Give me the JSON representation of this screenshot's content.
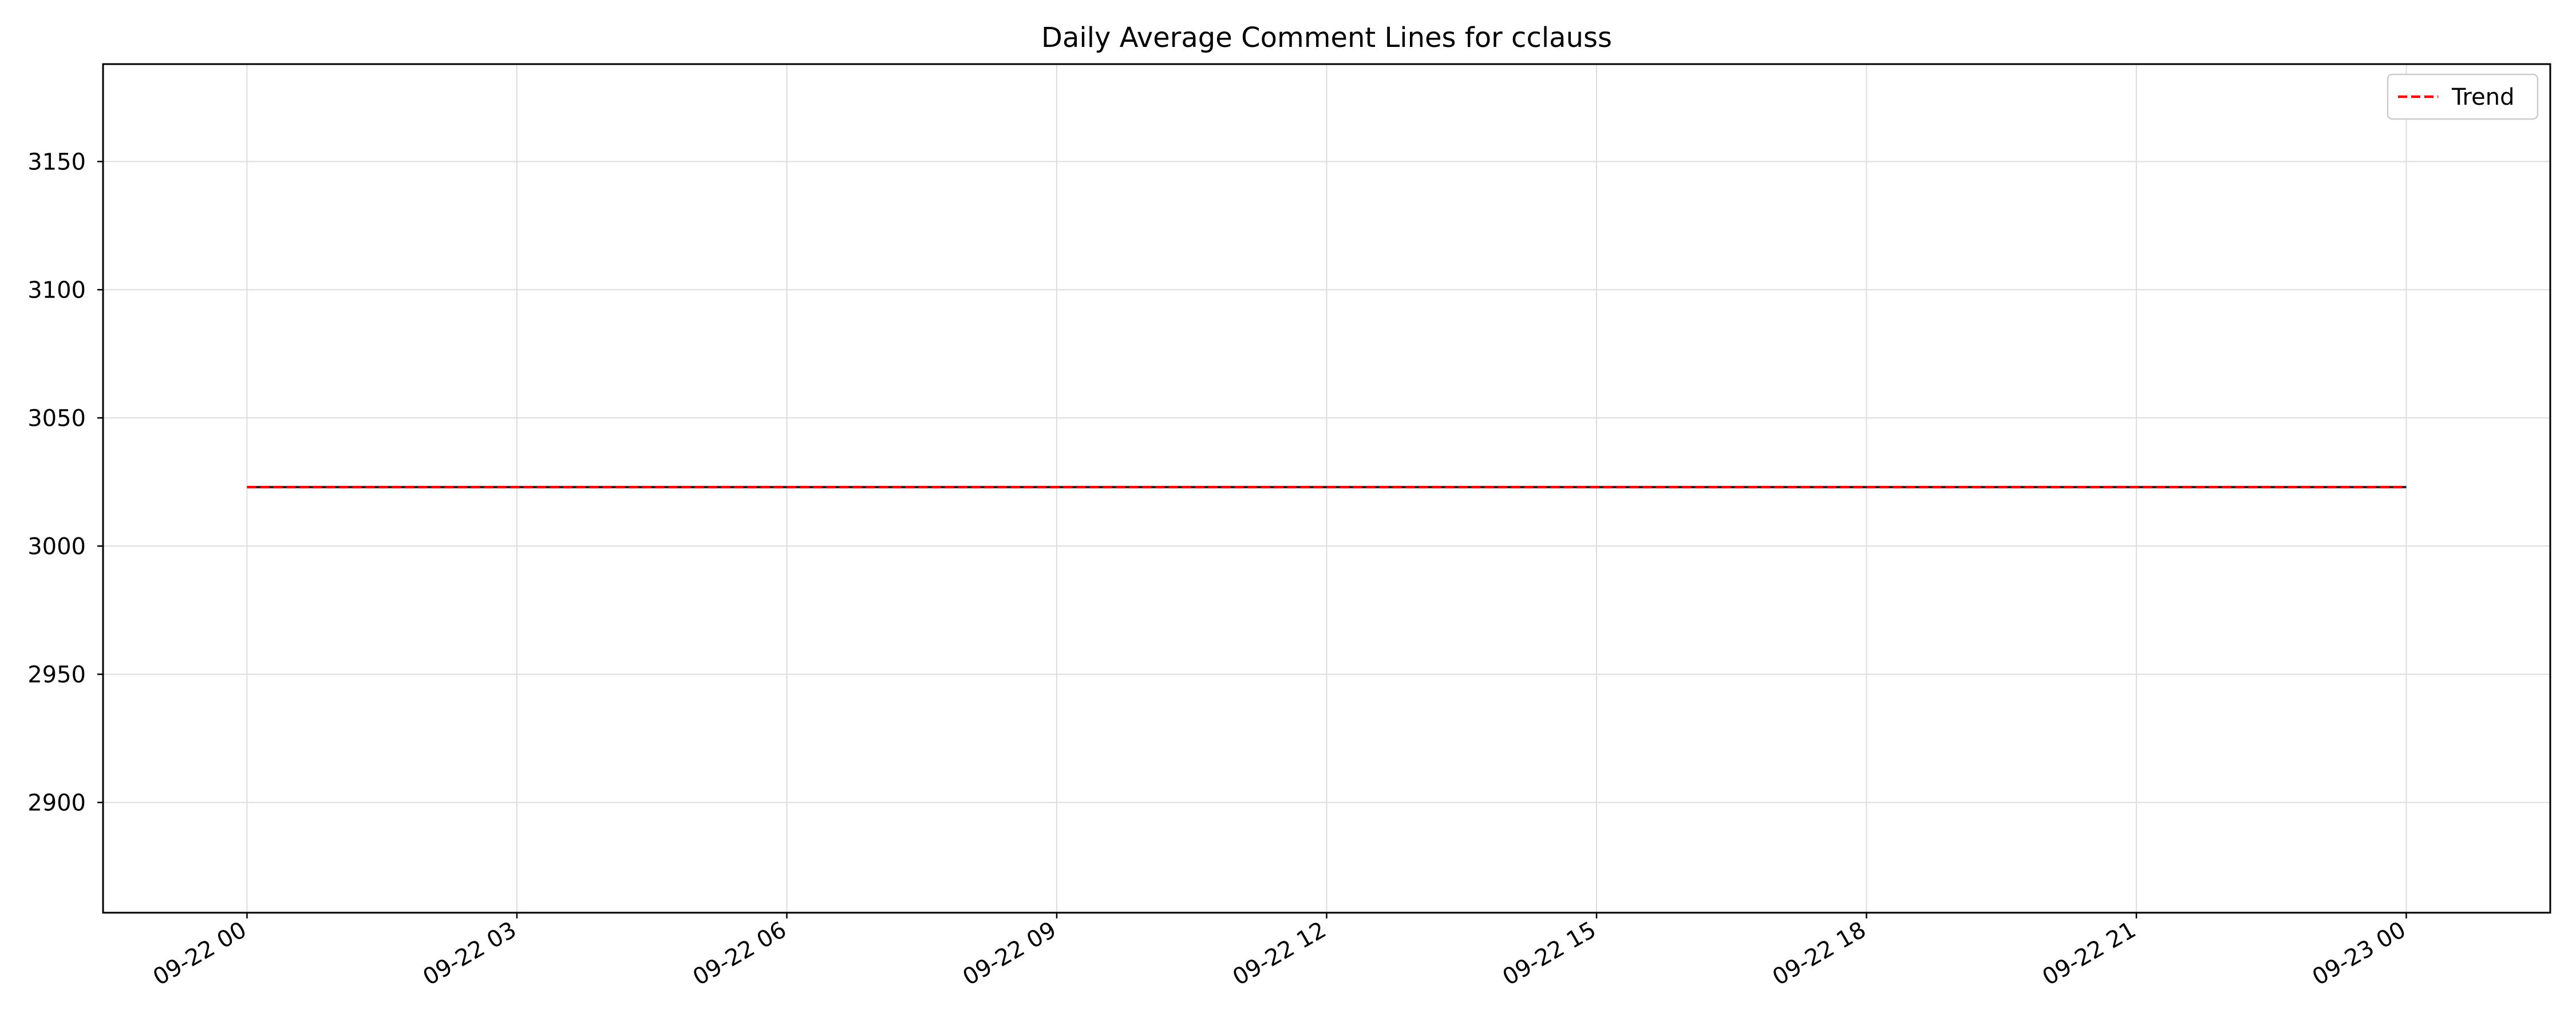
{
  "chart_data": {
    "type": "line",
    "title": "Daily Average Comment Lines for cclauss",
    "xlabel": "",
    "ylabel": "",
    "x_ticks": [
      "09-22 00",
      "09-22 03",
      "09-22 06",
      "09-22 09",
      "09-22 12",
      "09-22 15",
      "09-22 18",
      "09-22 21",
      "09-23 00"
    ],
    "x_tick_hours": [
      0,
      3,
      6,
      9,
      12,
      15,
      18,
      21,
      24
    ],
    "xlim_hours": [
      -1.6,
      25.6
    ],
    "y_ticks": [
      2900,
      2950,
      3000,
      3050,
      3100,
      3150
    ],
    "ylim": [
      2857,
      3188
    ],
    "grid": true,
    "legend_position": "top-right",
    "series": [
      {
        "x_hours": [
          0,
          24
        ],
        "values": [
          3023,
          3023
        ],
        "color": "#1f1f1f",
        "style": "solid"
      },
      {
        "name": "Trend",
        "x_hours": [
          0,
          24
        ],
        "values": [
          3023,
          3023
        ],
        "color": "#ff0000",
        "style": "dashed"
      }
    ]
  }
}
